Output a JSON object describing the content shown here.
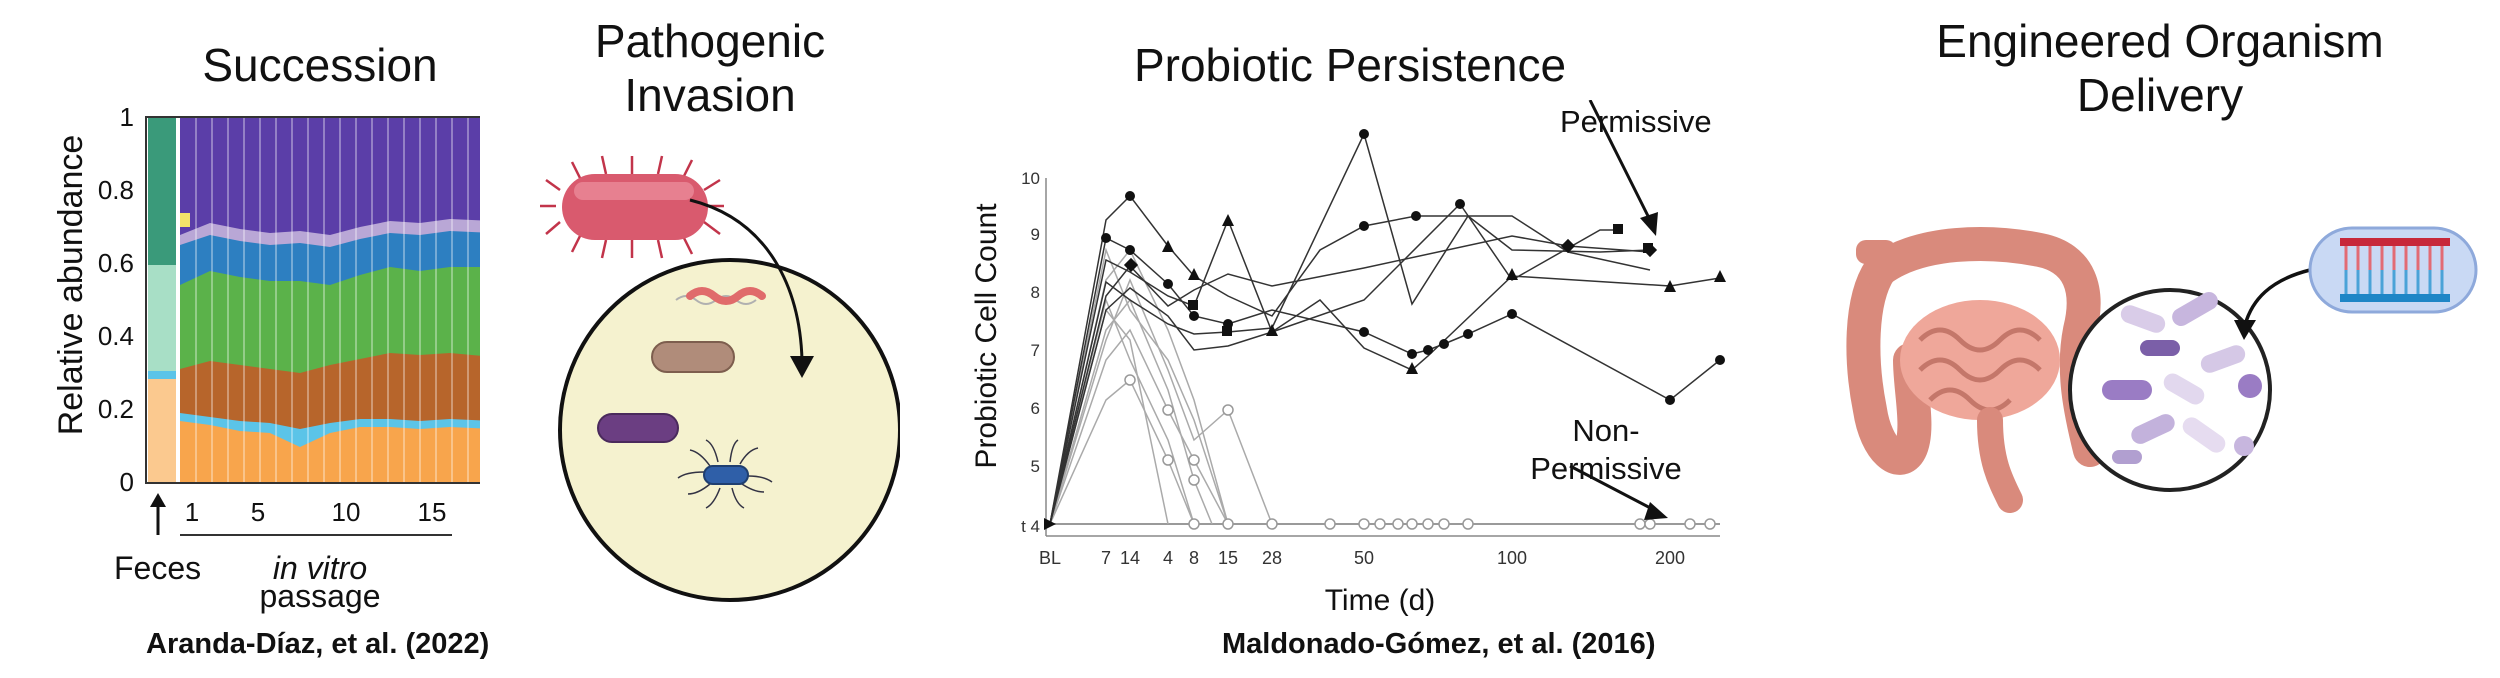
{
  "panels": {
    "succession": {
      "title": "Succession",
      "y_axis_label": "Relative abundance",
      "y_ticks": [
        "0",
        "0.2",
        "0.4",
        "0.6",
        "0.8",
        "1"
      ],
      "x_ticks": [
        "1",
        "5",
        "10",
        "15"
      ],
      "feces_label": "Feces",
      "passage_label_italic": "in vitro",
      "passage_label": "passage",
      "citation": "Aranda-Díaz, et al. (2022)",
      "colors": {
        "orange": "#f8a54c",
        "lightblue": "#5bc4e8",
        "brown": "#b7652b",
        "green": "#5bb24a",
        "blue": "#2d7fc1",
        "lavender": "#b9a7d6",
        "yellow": "#f2e36a",
        "purple": "#5b3ea8",
        "teal": "#3a9a7a"
      }
    },
    "invasion": {
      "title_line1": "Pathogenic",
      "title_line2": "Invasion"
    },
    "persistence": {
      "title": "Probiotic Persistence",
      "y_axis_label": "Probiotic Cell Count",
      "x_axis_label": "Time (d)",
      "y_ticks": [
        "t 4",
        "5",
        "6",
        "7",
        "8",
        "9",
        "10"
      ],
      "x_ticks": [
        "BL",
        "7",
        "14",
        "4",
        "8",
        "15",
        "28",
        "50",
        "100",
        "200"
      ],
      "annotation_permissive": "Permissive",
      "annotation_nonpermissive_line1": "Non-",
      "annotation_nonpermissive_line2": "Permissive",
      "citation": "Maldonado-Gómez, et al. (2016)"
    },
    "delivery": {
      "title_line1": "Engineered Organism",
      "title_line2": "Delivery"
    }
  }
}
